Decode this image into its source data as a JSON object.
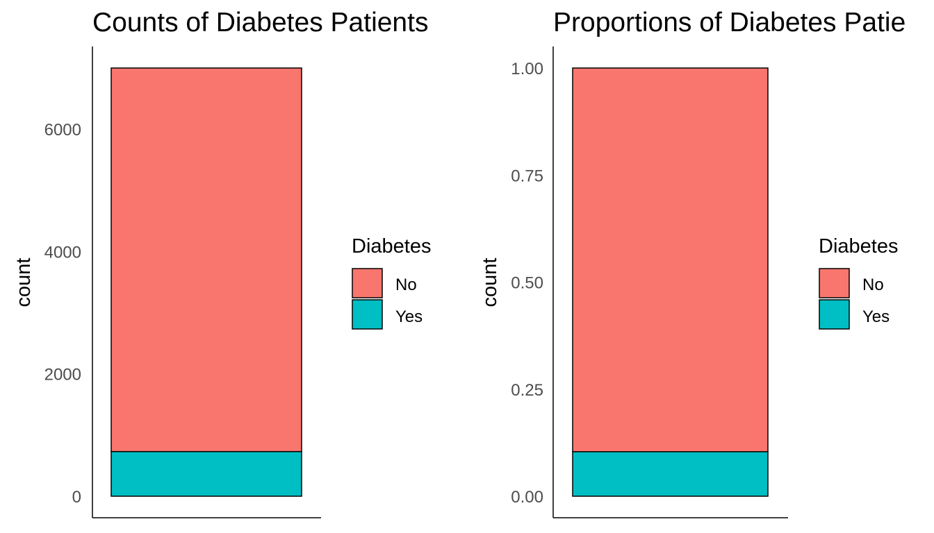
{
  "chart_data": [
    {
      "type": "bar",
      "stacked": true,
      "title": "Counts of Diabetes Patients",
      "xlabel": "",
      "ylabel": "count",
      "ylim": [
        0,
        7000
      ],
      "yticks": [
        0,
        2000,
        4000,
        6000
      ],
      "ytick_labels": [
        "0",
        "2000",
        "4000",
        "6000"
      ],
      "categories": [
        ""
      ],
      "series": [
        {
          "name": "No",
          "values": [
            6270
          ],
          "color": "#F8766D"
        },
        {
          "name": "Yes",
          "values": [
            730
          ],
          "color": "#00BFC4"
        }
      ],
      "legend": {
        "title": "Diabetes",
        "entries": [
          "No",
          "Yes"
        ],
        "position": "right"
      },
      "grid": false
    },
    {
      "type": "bar",
      "stacked": true,
      "title": "Proportions of Diabetes Patie",
      "xlabel": "",
      "ylabel": "count",
      "ylim": [
        0,
        1
      ],
      "yticks": [
        0,
        0.25,
        0.5,
        0.75,
        1
      ],
      "ytick_labels": [
        "0.00",
        "0.25",
        "0.50",
        "0.75",
        "1.00"
      ],
      "categories": [
        ""
      ],
      "series": [
        {
          "name": "No",
          "values": [
            0.896
          ],
          "color": "#F8766D"
        },
        {
          "name": "Yes",
          "values": [
            0.104
          ],
          "color": "#00BFC4"
        }
      ],
      "legend": {
        "title": "Diabetes",
        "entries": [
          "No",
          "Yes"
        ],
        "position": "right"
      },
      "grid": false
    }
  ]
}
